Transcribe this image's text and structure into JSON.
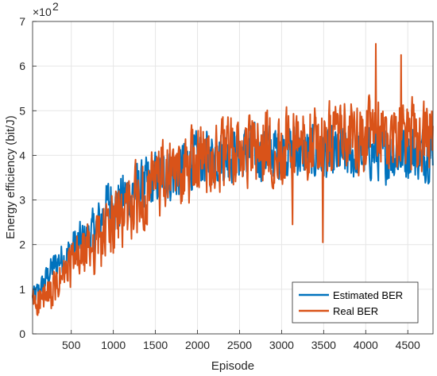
{
  "chart_data": {
    "type": "line",
    "title": "",
    "xlabel": "Episode",
    "ylabel": "Energy efficiency (bit/J)",
    "exponent_base": "×10",
    "exponent_power": "2",
    "xlim": [
      40,
      4800
    ],
    "ylim": [
      0,
      7
    ],
    "xticks": [
      500,
      1000,
      1500,
      2000,
      2500,
      3000,
      3500,
      4000,
      4500
    ],
    "yticks": [
      0,
      1,
      2,
      3,
      4,
      5,
      6,
      7
    ],
    "grid": true,
    "legend_position": "bottom-right",
    "series": [
      {
        "name": "Estimated BER",
        "color": "#0072BD",
        "points": [
          [
            40,
            0.8
          ],
          [
            150,
            1.05
          ],
          [
            250,
            1.4
          ],
          [
            350,
            1.65
          ],
          [
            450,
            1.75
          ],
          [
            550,
            2.0
          ],
          [
            650,
            2.1
          ],
          [
            750,
            2.25
          ],
          [
            850,
            2.55
          ],
          [
            950,
            3.0
          ],
          [
            1050,
            2.85
          ],
          [
            1150,
            3.1
          ],
          [
            1250,
            3.2
          ],
          [
            1350,
            3.25
          ],
          [
            1450,
            3.4
          ],
          [
            1550,
            3.55
          ],
          [
            1650,
            3.55
          ],
          [
            1750,
            3.6
          ],
          [
            1850,
            3.75
          ],
          [
            1950,
            3.85
          ],
          [
            2050,
            3.95
          ],
          [
            2150,
            3.95
          ],
          [
            2250,
            4.0
          ],
          [
            2350,
            4.0
          ],
          [
            2450,
            4.05
          ],
          [
            2550,
            4.05
          ],
          [
            2650,
            4.05
          ],
          [
            2750,
            4.05
          ],
          [
            2850,
            4.1
          ],
          [
            2950,
            4.1
          ],
          [
            3050,
            4.1
          ],
          [
            3150,
            4.1
          ],
          [
            3250,
            4.05
          ],
          [
            3350,
            4.05
          ],
          [
            3450,
            4.0
          ],
          [
            3550,
            4.0
          ],
          [
            3650,
            4.0
          ],
          [
            3750,
            4.05
          ],
          [
            3850,
            4.0
          ],
          [
            3950,
            4.0
          ],
          [
            4050,
            4.05
          ],
          [
            4150,
            4.05
          ],
          [
            4250,
            4.0
          ],
          [
            4350,
            4.05
          ],
          [
            4450,
            4.05
          ],
          [
            4550,
            4.1
          ],
          [
            4650,
            4.05
          ],
          [
            4750,
            4.05
          ],
          [
            4800,
            4.0
          ]
        ],
        "noise": 0.42
      },
      {
        "name": "Real BER",
        "color": "#D95319",
        "points": [
          [
            40,
            0.7
          ],
          [
            150,
            0.75
          ],
          [
            250,
            0.85
          ],
          [
            350,
            1.1
          ],
          [
            450,
            1.4
          ],
          [
            550,
            1.65
          ],
          [
            650,
            1.75
          ],
          [
            750,
            2.0
          ],
          [
            850,
            2.1
          ],
          [
            950,
            2.35
          ],
          [
            1050,
            2.55
          ],
          [
            1150,
            2.75
          ],
          [
            1250,
            2.95
          ],
          [
            1350,
            3.1
          ],
          [
            1450,
            3.2
          ],
          [
            1550,
            3.45
          ],
          [
            1650,
            3.5
          ],
          [
            1750,
            3.55
          ],
          [
            1850,
            3.65
          ],
          [
            1950,
            3.85
          ],
          [
            2050,
            3.95
          ],
          [
            2150,
            4.0
          ],
          [
            2250,
            4.0
          ],
          [
            2350,
            4.05
          ],
          [
            2450,
            4.05
          ],
          [
            2550,
            4.05
          ],
          [
            2650,
            4.1
          ],
          [
            2750,
            4.1
          ],
          [
            2850,
            4.15
          ],
          [
            2950,
            4.2
          ],
          [
            3050,
            4.25
          ],
          [
            3150,
            4.25
          ],
          [
            3250,
            4.3
          ],
          [
            3350,
            4.3
          ],
          [
            3450,
            4.3
          ],
          [
            3550,
            4.35
          ],
          [
            3650,
            4.35
          ],
          [
            3750,
            4.4
          ],
          [
            3850,
            4.4
          ],
          [
            3950,
            4.4
          ],
          [
            4050,
            4.45
          ],
          [
            4150,
            4.45
          ],
          [
            4250,
            4.45
          ],
          [
            4350,
            4.45
          ],
          [
            4450,
            4.45
          ],
          [
            4550,
            4.45
          ],
          [
            4650,
            4.45
          ],
          [
            4750,
            4.4
          ],
          [
            4800,
            4.4
          ]
        ],
        "noise": 0.55,
        "extremes": [
          [
            3490,
            2.05
          ],
          [
            3130,
            2.45
          ],
          [
            4120,
            6.5
          ],
          [
            4420,
            6.25
          ]
        ]
      }
    ]
  }
}
